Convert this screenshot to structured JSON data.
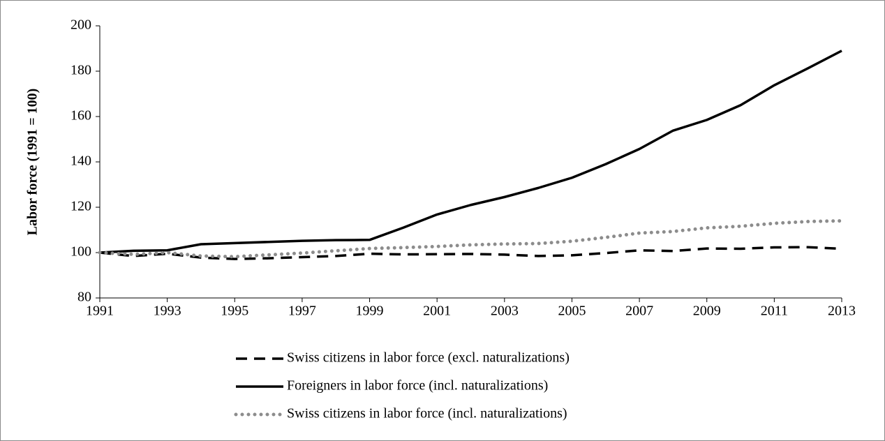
{
  "chart_data": {
    "type": "line",
    "y_label": "Labor force (1991 = 100)",
    "x": [
      1991,
      1992,
      1993,
      1994,
      1995,
      1996,
      1997,
      1998,
      1999,
      2000,
      2001,
      2002,
      2003,
      2004,
      2005,
      2006,
      2007,
      2008,
      2009,
      2010,
      2011,
      2012,
      2013
    ],
    "xlim": [
      1991,
      2013
    ],
    "xticks": [
      1991,
      1993,
      1995,
      1997,
      1999,
      2001,
      2003,
      2005,
      2007,
      2009,
      2011,
      2013
    ],
    "ylim": [
      80,
      200
    ],
    "yticks": [
      80,
      100,
      120,
      140,
      160,
      180,
      200
    ],
    "series": [
      {
        "name": "Swiss citizens in labor force (excl. naturalizations)",
        "color": "#000000",
        "style": "dashed",
        "values": [
          100,
          98.5,
          99.5,
          97.8,
          97.2,
          97.5,
          98,
          98.5,
          99.5,
          99.2,
          99.3,
          99.4,
          99.1,
          98.5,
          98.8,
          99.8,
          101,
          100.7,
          101.8,
          101.7,
          102.3,
          102.4,
          101.7
        ]
      },
      {
        "name": "Foreigners in labor force (incl. naturalizations)",
        "color": "#000000",
        "style": "solid",
        "values": [
          100,
          100.8,
          101,
          103.7,
          104.2,
          104.7,
          105.2,
          105.5,
          105.6,
          111,
          116.8,
          121,
          124.5,
          128.5,
          133,
          139,
          145.7,
          153.8,
          158.5,
          165,
          173.8,
          181.3,
          189
        ]
      },
      {
        "name": "Swiss citizens in labor force (incl. naturalizations)",
        "color": "#8c8c8c",
        "style": "dotted",
        "values": [
          100,
          99.2,
          100,
          98.5,
          98.2,
          99,
          99.8,
          100.8,
          101.8,
          102.2,
          102.7,
          103.4,
          103.8,
          104,
          105,
          106.7,
          108.6,
          109.3,
          110.9,
          111.6,
          112.9,
          113.7,
          114
        ]
      }
    ]
  }
}
